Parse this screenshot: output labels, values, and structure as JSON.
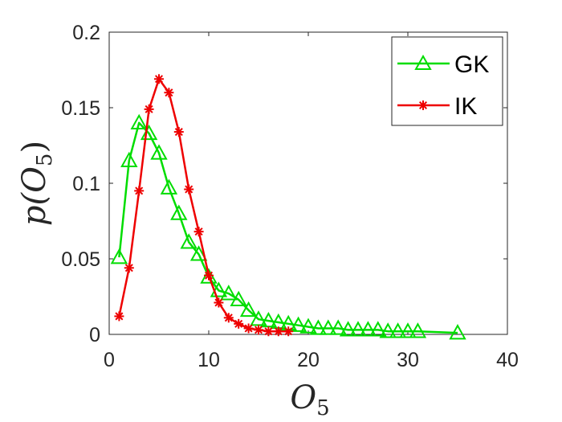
{
  "chart_data": {
    "type": "line",
    "title": "",
    "xlabel": "O",
    "xlabel_sub": "5",
    "ylabel": "p(O",
    "ylabel_sub": "5",
    "ylabel_close": ")",
    "xlim": [
      0,
      40
    ],
    "ylim": [
      0,
      0.2
    ],
    "xticks": [
      0,
      10,
      20,
      30,
      40
    ],
    "xtick_labels": [
      "0",
      "10",
      "20",
      "30",
      "40"
    ],
    "yticks": [
      0,
      0.05,
      0.1,
      0.15,
      0.2
    ],
    "ytick_labels": [
      "0",
      "0.05",
      "0.1",
      "0.15",
      "0.2"
    ],
    "grid": false,
    "legend_position": "top-right",
    "series": [
      {
        "name": "GK",
        "color": "#00dd00",
        "marker": "triangle",
        "x": [
          1,
          2,
          3,
          4,
          5,
          6,
          7,
          8,
          9,
          10,
          11,
          12,
          13,
          14,
          15,
          16,
          17,
          18,
          19,
          20,
          21,
          22,
          23,
          24,
          25,
          26,
          27,
          28,
          29,
          30,
          31,
          35
        ],
        "y": [
          0.051,
          0.115,
          0.14,
          0.133,
          0.12,
          0.097,
          0.08,
          0.061,
          0.053,
          0.038,
          0.029,
          0.027,
          0.023,
          0.016,
          0.01,
          0.009,
          0.008,
          0.007,
          0.006,
          0.005,
          0.004,
          0.004,
          0.004,
          0.003,
          0.003,
          0.003,
          0.003,
          0.002,
          0.002,
          0.002,
          0.002,
          0.001
        ]
      },
      {
        "name": "IK",
        "color": "#ee0000",
        "marker": "asterisk",
        "x": [
          1,
          2,
          3,
          4,
          5,
          6,
          7,
          8,
          9,
          10,
          11,
          12,
          13,
          14,
          15,
          16,
          17,
          18
        ],
        "y": [
          0.012,
          0.044,
          0.095,
          0.149,
          0.169,
          0.16,
          0.134,
          0.096,
          0.068,
          0.039,
          0.021,
          0.011,
          0.007,
          0.004,
          0.003,
          0.002,
          0.002,
          0.002
        ]
      }
    ]
  }
}
